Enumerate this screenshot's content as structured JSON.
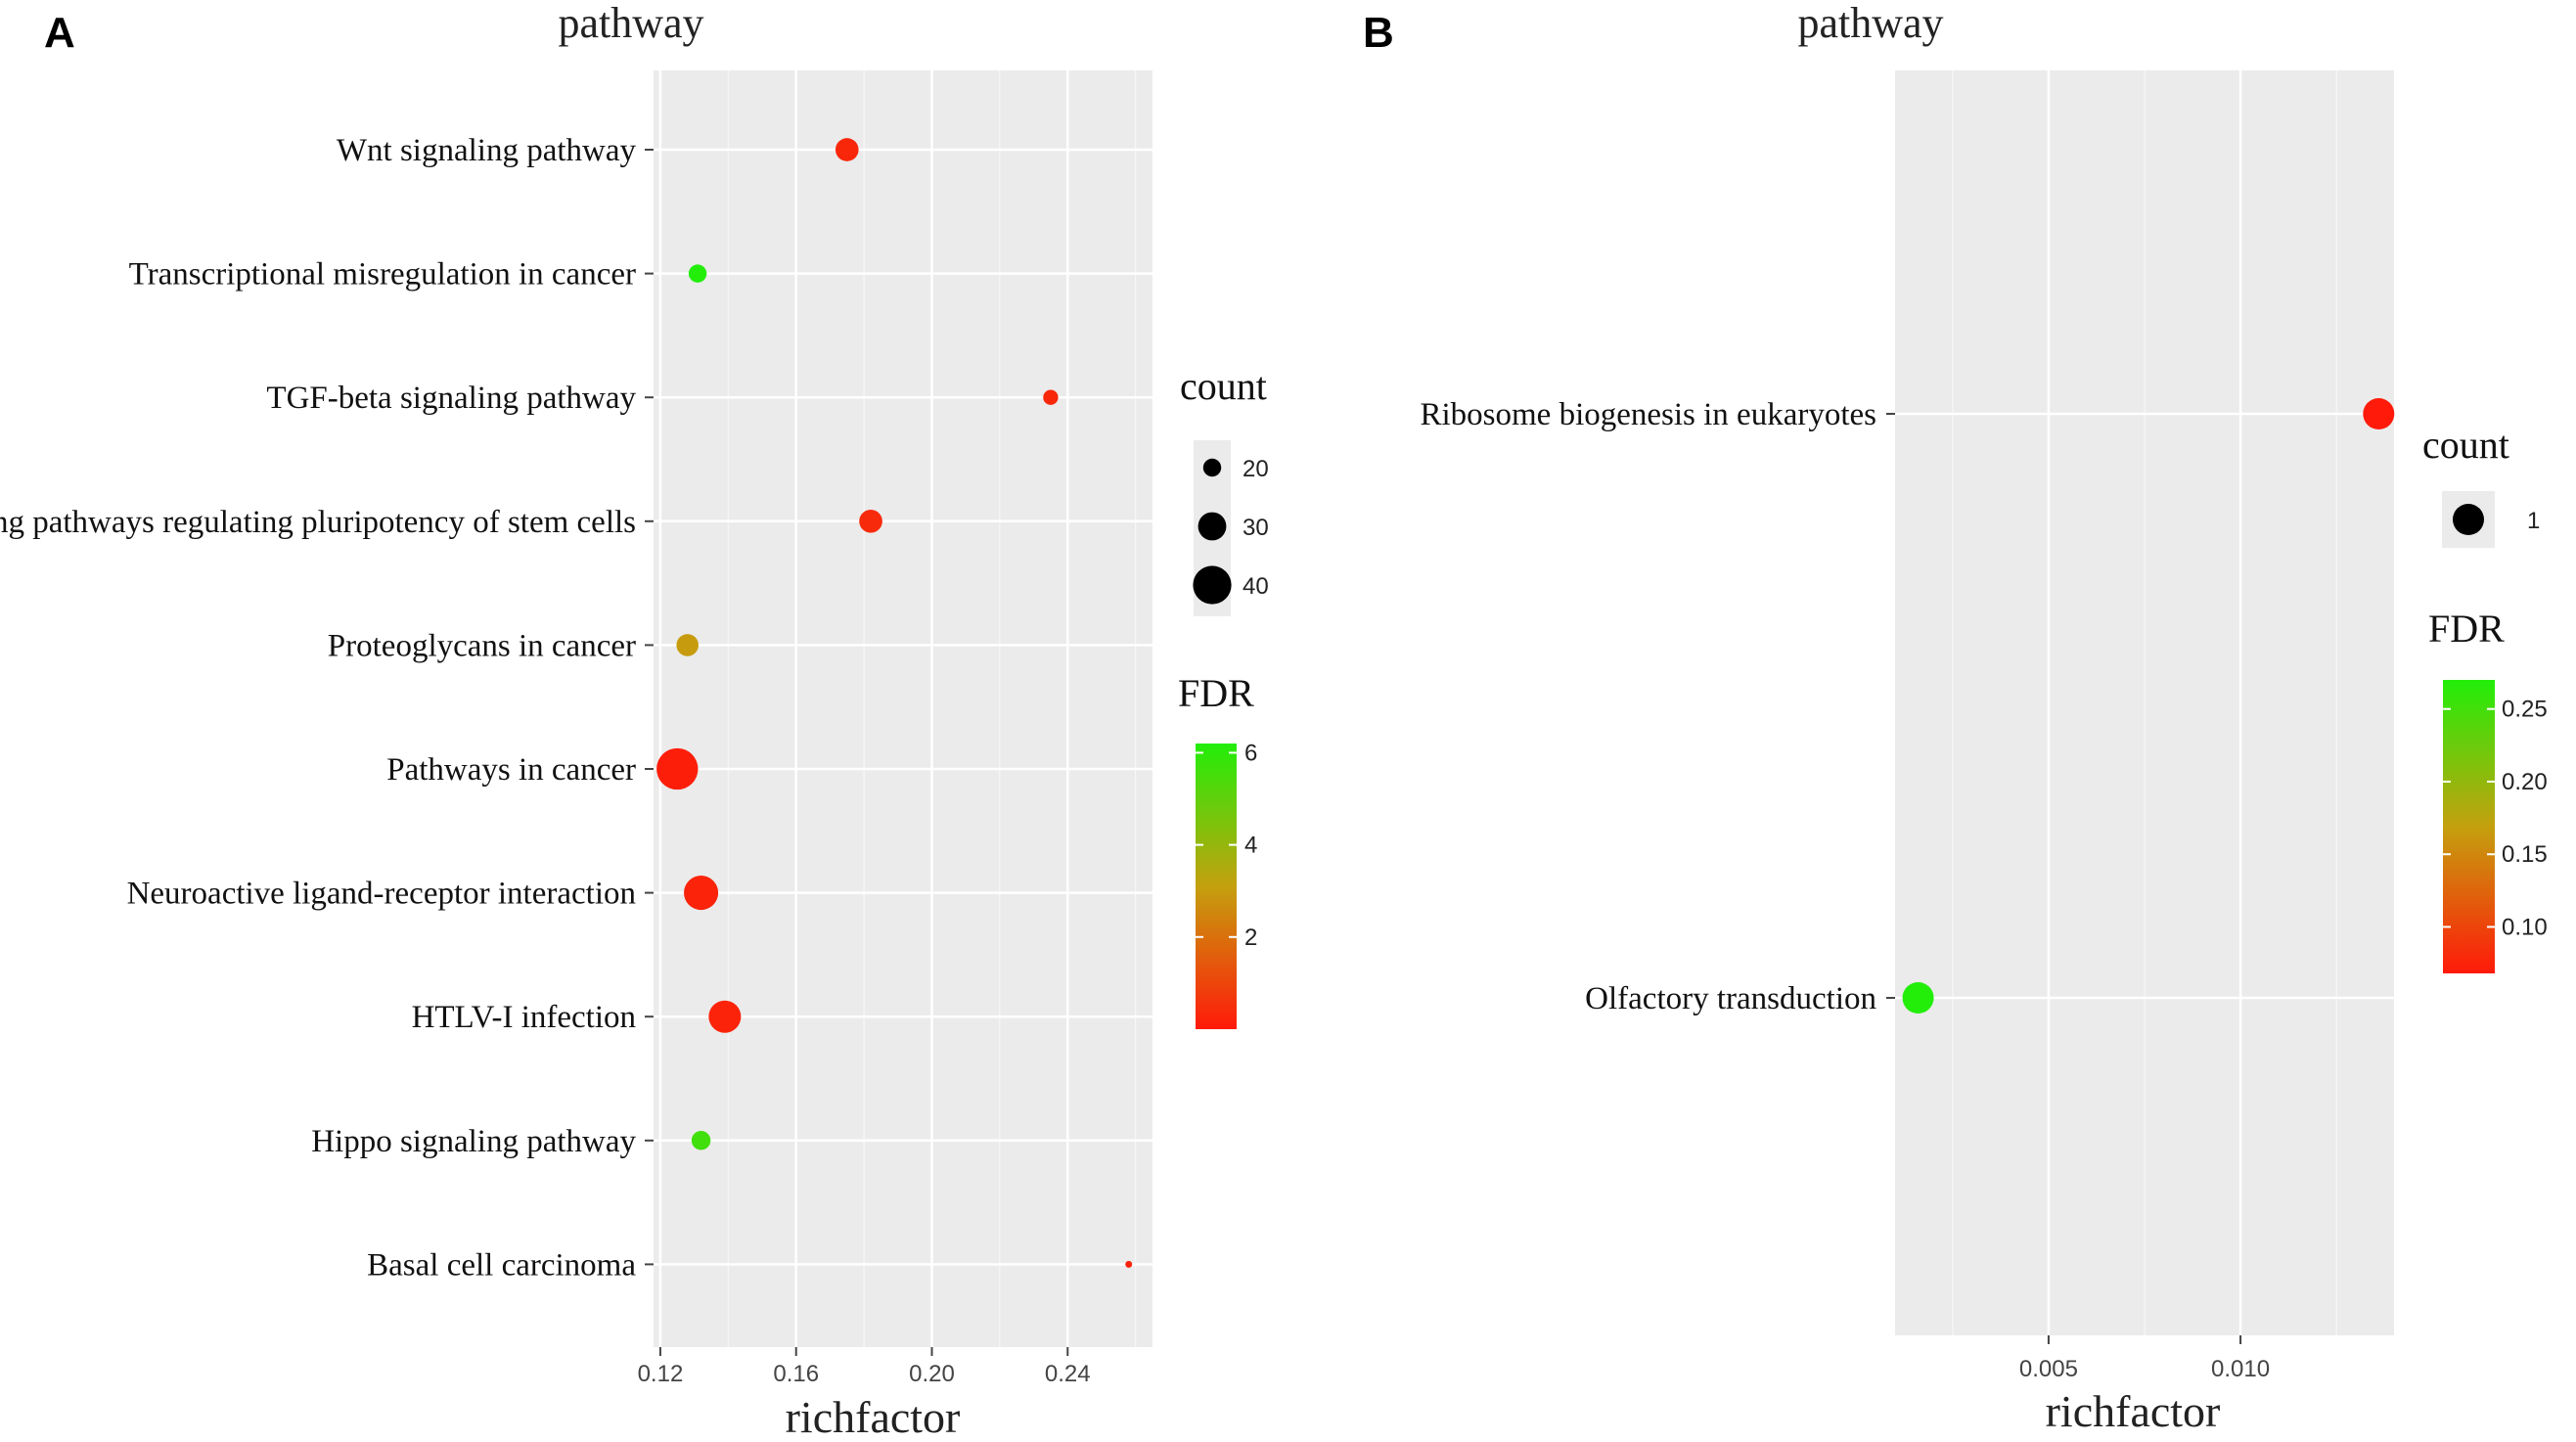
{
  "chart_data": [
    {
      "panel": "A",
      "type": "scatter",
      "title": "pathway",
      "xlabel": "richfactor",
      "ylabel": "",
      "xlim": [
        0.118,
        0.265
      ],
      "xticks": [
        0.12,
        0.16,
        0.2,
        0.24
      ],
      "xtick_labels": [
        "0.12",
        "0.16",
        "0.20",
        "0.24"
      ],
      "categories": [
        "Wnt signaling pathway",
        "Transcriptional misregulation in cancer",
        "TGF-beta signaling pathway",
        "Signaling pathways regulating pluripotency of stem cells",
        "Proteoglycans in cancer",
        "Pathways in cancer",
        "Neuroactive ligand-receptor interaction",
        "HTLV-I infection",
        "Hippo signaling pathway",
        "Basal cell carcinoma"
      ],
      "points": [
        {
          "pathway": "Wnt signaling pathway",
          "richfactor": 0.175,
          "count": 25,
          "fdr": 0.3
        },
        {
          "pathway": "Transcriptional misregulation in cancer",
          "richfactor": 0.131,
          "count": 20,
          "fdr": 6.2
        },
        {
          "pathway": "TGF-beta signaling pathway",
          "richfactor": 0.235,
          "count": 17,
          "fdr": 0.3
        },
        {
          "pathway": "Signaling pathways regulating pluripotency of stem cells",
          "richfactor": 0.182,
          "count": 25,
          "fdr": 0.4
        },
        {
          "pathway": "Proteoglycans in cancer",
          "richfactor": 0.128,
          "count": 24,
          "fdr": 3.0
        },
        {
          "pathway": "Pathways in cancer",
          "richfactor": 0.125,
          "count": 43,
          "fdr": 0.1
        },
        {
          "pathway": "Neuroactive ligand-receptor interaction",
          "richfactor": 0.132,
          "count": 36,
          "fdr": 0.2
        },
        {
          "pathway": "HTLV-I infection",
          "richfactor": 0.139,
          "count": 34,
          "fdr": 0.2
        },
        {
          "pathway": "Hippo signaling pathway",
          "richfactor": 0.132,
          "count": 21,
          "fdr": 5.6
        },
        {
          "pathway": "Basal cell carcinoma",
          "richfactor": 0.258,
          "count": 9,
          "fdr": 0.2
        }
      ],
      "size_legend": {
        "title": "count",
        "values": [
          20,
          30,
          40
        ],
        "labels": [
          "20",
          "30",
          "40"
        ]
      },
      "color_legend": {
        "title": "FDR",
        "min": 0,
        "max": 6.2,
        "ticks": [
          2,
          4,
          6
        ],
        "labels": [
          "2",
          "4",
          "6"
        ],
        "low_color": "#ff1a0a",
        "high_color": "#22ee0a",
        "low_rgb": [
          255,
          26,
          10
        ],
        "mid_rgb": [
          196,
          160,
          14
        ],
        "high_rgb": [
          34,
          238,
          10
        ]
      }
    },
    {
      "panel": "B",
      "type": "scatter",
      "title": "pathway",
      "xlabel": "richfactor",
      "ylabel": "",
      "xlim": [
        0.001,
        0.014
      ],
      "xticks": [
        0.005,
        0.01
      ],
      "xtick_labels": [
        "0.005",
        "0.010"
      ],
      "categories": [
        "Ribosome biogenesis in eukaryotes",
        "Olfactory transduction"
      ],
      "points": [
        {
          "pathway": "Ribosome biogenesis in eukaryotes",
          "richfactor": 0.0136,
          "count": 1,
          "fdr": 0.068
        },
        {
          "pathway": "Olfactory transduction",
          "richfactor": 0.0016,
          "count": 1,
          "fdr": 0.27
        }
      ],
      "size_legend": {
        "title": "count",
        "values": [
          1
        ],
        "labels": [
          "1"
        ]
      },
      "color_legend": {
        "title": "FDR",
        "min": 0.068,
        "max": 0.27,
        "ticks": [
          0.1,
          0.15,
          0.2,
          0.25
        ],
        "labels": [
          "0.10",
          "0.15",
          "0.20",
          "0.25"
        ],
        "low_color": "#ff1a0a",
        "high_color": "#22ee0a",
        "low_rgb": [
          255,
          26,
          10
        ],
        "mid_rgb": [
          196,
          160,
          14
        ],
        "high_rgb": [
          34,
          238,
          10
        ]
      }
    }
  ]
}
